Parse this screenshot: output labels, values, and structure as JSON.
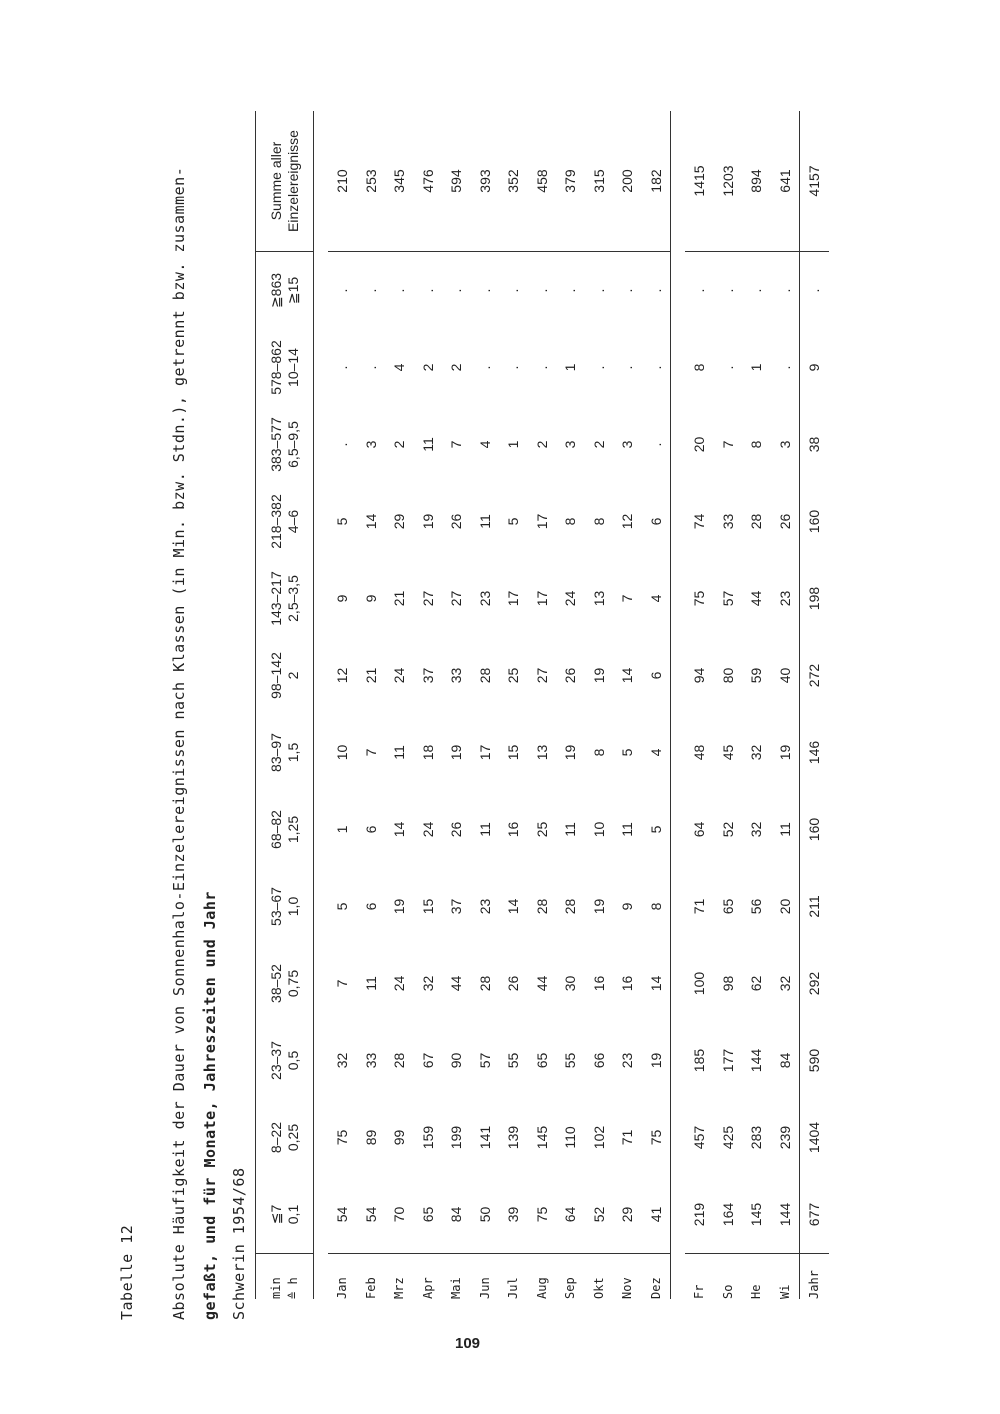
{
  "table_label": "Tabelle 12",
  "caption_line1": "Absolute Häufigkeit der Dauer von Sonnenhalo-Einzelereignissen nach Klassen (in Min. bzw. Stdn.), getrennt bzw. zusammen-",
  "caption_line2": "gefaßt, und für Monate, Jahreszeiten und Jahr",
  "caption_line3": "Schwerin 1954/68",
  "page_number": "109",
  "header_label": [
    "min",
    "≙ h"
  ],
  "columns": [
    [
      "≦7",
      "0,1"
    ],
    [
      "8–22",
      "0,25"
    ],
    [
      "23–37",
      "0,5"
    ],
    [
      "38–52",
      "0,75"
    ],
    [
      "53–67",
      "1,0"
    ],
    [
      "68–82",
      "1,25"
    ],
    [
      "83–97",
      "1,5"
    ],
    [
      "98–142",
      "2"
    ],
    [
      "143–217",
      "2,5–3,5"
    ],
    [
      "218–382",
      "4–6"
    ],
    [
      "383–577",
      "6,5–9,5"
    ],
    [
      "578–862",
      "10–14"
    ],
    [
      "≧863",
      "≧15"
    ],
    [
      "Summe aller",
      "Einzelereignisse"
    ]
  ],
  "months": [
    {
      "label": "Jan",
      "values": [
        "54",
        "75",
        "32",
        "7",
        "5",
        "1",
        "10",
        "12",
        "9",
        "5",
        ".",
        ".",
        ".",
        "210"
      ]
    },
    {
      "label": "Feb",
      "values": [
        "54",
        "89",
        "33",
        "11",
        "6",
        "6",
        "7",
        "21",
        "9",
        "14",
        "3",
        ".",
        ".",
        "253"
      ]
    },
    {
      "label": "Mrz",
      "values": [
        "70",
        "99",
        "28",
        "24",
        "19",
        "14",
        "11",
        "24",
        "21",
        "29",
        "2",
        "4",
        ".",
        "345"
      ]
    },
    {
      "label": "Apr",
      "values": [
        "65",
        "159",
        "67",
        "32",
        "15",
        "24",
        "18",
        "37",
        "27",
        "19",
        "11",
        "2",
        ".",
        "476"
      ]
    },
    {
      "label": "Mai",
      "values": [
        "84",
        "199",
        "90",
        "44",
        "37",
        "26",
        "19",
        "33",
        "27",
        "26",
        "7",
        "2",
        ".",
        "594"
      ]
    },
    {
      "label": "Jun",
      "values": [
        "50",
        "141",
        "57",
        "28",
        "23",
        "11",
        "17",
        "28",
        "23",
        "11",
        "4",
        ".",
        ".",
        "393"
      ]
    },
    {
      "label": "Jul",
      "values": [
        "39",
        "139",
        "55",
        "26",
        "14",
        "16",
        "15",
        "25",
        "17",
        "5",
        "1",
        ".",
        ".",
        "352"
      ]
    },
    {
      "label": "Aug",
      "values": [
        "75",
        "145",
        "65",
        "44",
        "28",
        "25",
        "13",
        "27",
        "17",
        "17",
        "2",
        ".",
        ".",
        "458"
      ]
    },
    {
      "label": "Sep",
      "values": [
        "64",
        "110",
        "55",
        "30",
        "28",
        "11",
        "19",
        "26",
        "24",
        "8",
        "3",
        "1",
        ".",
        "379"
      ]
    },
    {
      "label": "Okt",
      "values": [
        "52",
        "102",
        "66",
        "16",
        "19",
        "10",
        "8",
        "19",
        "13",
        "8",
        "2",
        ".",
        ".",
        "315"
      ]
    },
    {
      "label": "Nov",
      "values": [
        "29",
        "71",
        "23",
        "16",
        "9",
        "11",
        "5",
        "14",
        "7",
        "12",
        "3",
        ".",
        ".",
        "200"
      ]
    },
    {
      "label": "Dez",
      "values": [
        "41",
        "75",
        "19",
        "14",
        "8",
        "5",
        "4",
        "6",
        "4",
        "6",
        ".",
        ".",
        ".",
        "182"
      ]
    }
  ],
  "seasons": [
    {
      "label": "Fr",
      "values": [
        "219",
        "457",
        "185",
        "100",
        "71",
        "64",
        "48",
        "94",
        "75",
        "74",
        "20",
        "8",
        ".",
        "1415"
      ]
    },
    {
      "label": "So",
      "values": [
        "164",
        "425",
        "177",
        "98",
        "65",
        "52",
        "45",
        "80",
        "57",
        "33",
        "7",
        ".",
        ".",
        "1203"
      ]
    },
    {
      "label": "He",
      "values": [
        "145",
        "283",
        "144",
        "62",
        "56",
        "32",
        "32",
        "59",
        "44",
        "28",
        "8",
        "1",
        ".",
        "894"
      ]
    },
    {
      "label": "Wi",
      "values": [
        "144",
        "239",
        "84",
        "32",
        "20",
        "11",
        "19",
        "40",
        "23",
        "26",
        "3",
        ".",
        ".",
        "641"
      ]
    }
  ],
  "year": {
    "label": "Jahr",
    "values": [
      "677",
      "1404",
      "590",
      "292",
      "211",
      "160",
      "146",
      "272",
      "198",
      "160",
      "38",
      "9",
      ".",
      "4157"
    ]
  }
}
